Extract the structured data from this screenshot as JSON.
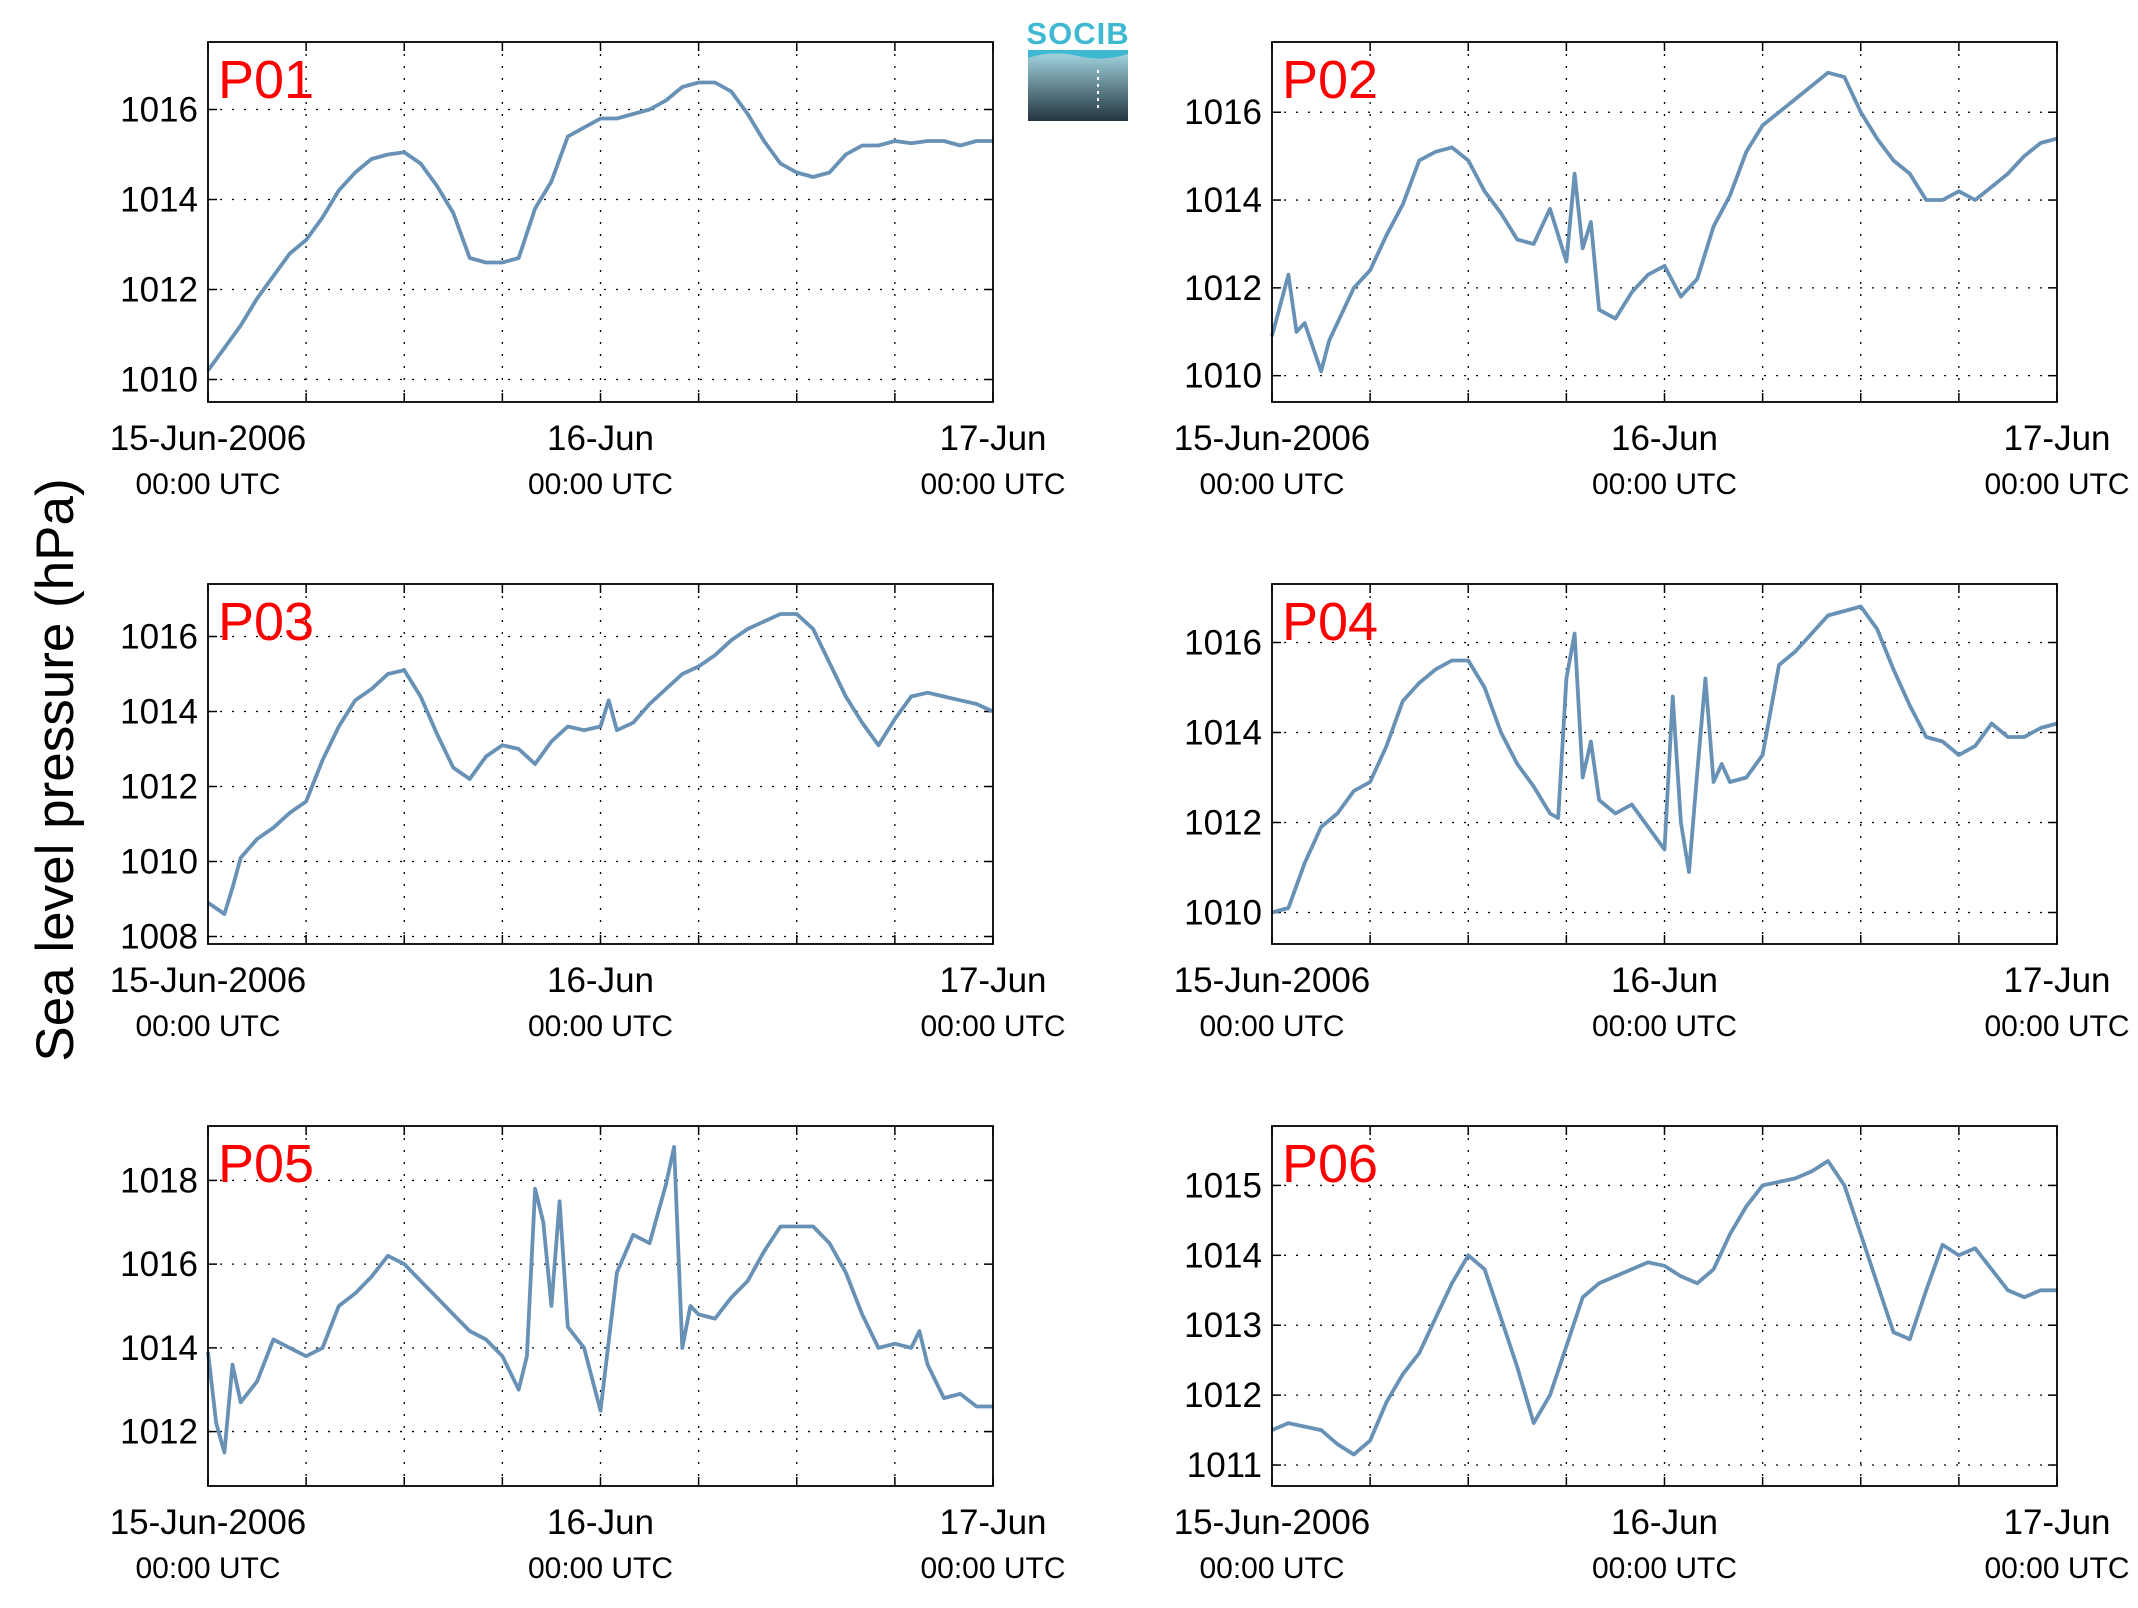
{
  "ylabel": "Sea level pressure (hPa)",
  "logo": {
    "text": "SOCIB"
  },
  "colors": {
    "line": "#6891b6",
    "label": "#ff0000",
    "logo_top": "#3fb8d2",
    "logo_bottom": "#23343f"
  },
  "time_axis": {
    "ticks": [
      {
        "main": "15-Jun-2006",
        "sub": "00:00 UTC"
      },
      {
        "main": "16-Jun",
        "sub": "00:00 UTC"
      },
      {
        "main": "17-Jun",
        "sub": "00:00 UTC"
      }
    ]
  },
  "chart_data": [
    {
      "type": "line",
      "label": "P01",
      "x_unit": "hours since 15-Jun-2006 00:00 UTC",
      "xlim": [
        0,
        48
      ],
      "ylim": [
        1009.5,
        1017.5
      ],
      "yticks": [
        1010,
        1012,
        1014,
        1016
      ],
      "grid": true,
      "x": [
        0,
        1,
        2,
        3,
        4,
        5,
        6,
        7,
        8,
        9,
        10,
        11,
        12,
        13,
        14,
        15,
        16,
        17,
        18,
        19,
        20,
        21,
        22,
        23,
        24,
        25,
        26,
        27,
        28,
        29,
        30,
        31,
        32,
        33,
        34,
        35,
        36,
        37,
        38,
        39,
        40,
        41,
        42,
        43,
        44,
        45,
        46,
        47,
        48
      ],
      "y": [
        1010.2,
        1010.7,
        1011.2,
        1011.8,
        1012.3,
        1012.8,
        1013.1,
        1013.6,
        1014.2,
        1014.6,
        1014.9,
        1015.0,
        1015.05,
        1014.8,
        1014.3,
        1013.7,
        1012.7,
        1012.6,
        1012.6,
        1012.7,
        1013.8,
        1014.4,
        1015.4,
        1015.6,
        1015.8,
        1015.8,
        1015.9,
        1016.0,
        1016.2,
        1016.5,
        1016.6,
        1016.6,
        1016.4,
        1015.9,
        1015.3,
        1014.8,
        1014.6,
        1014.5,
        1014.6,
        1015.0,
        1015.2,
        1015.2,
        1015.3,
        1015.25,
        1015.3,
        1015.3,
        1015.2,
        1015.3,
        1015.3
      ]
    },
    {
      "type": "line",
      "label": "P02",
      "x_unit": "hours since 15-Jun-2006 00:00 UTC",
      "xlim": [
        0,
        48
      ],
      "ylim": [
        1009.4,
        1017.6
      ],
      "yticks": [
        1010,
        1012,
        1014,
        1016
      ],
      "grid": true,
      "x": [
        0,
        0.5,
        1,
        1.5,
        2,
        3,
        3.5,
        4,
        5,
        6,
        7,
        8,
        9,
        10,
        11,
        12,
        13,
        14,
        15,
        16,
        17,
        18,
        18.5,
        19,
        19.5,
        20,
        21,
        22,
        23,
        24,
        25,
        26,
        27,
        28,
        29,
        30,
        31,
        32,
        33,
        34,
        35,
        36,
        37,
        38,
        39,
        40,
        41,
        42,
        43,
        44,
        45,
        46,
        47,
        48
      ],
      "y": [
        1010.9,
        1011.6,
        1012.3,
        1011.0,
        1011.2,
        1010.1,
        1010.8,
        1011.2,
        1012.0,
        1012.4,
        1013.2,
        1013.9,
        1014.9,
        1015.1,
        1015.2,
        1014.9,
        1014.2,
        1013.7,
        1013.1,
        1013.0,
        1013.8,
        1012.6,
        1014.6,
        1012.9,
        1013.5,
        1011.5,
        1011.3,
        1011.9,
        1012.3,
        1012.5,
        1011.8,
        1012.2,
        1013.4,
        1014.1,
        1015.1,
        1015.7,
        1016.0,
        1016.3,
        1016.6,
        1016.9,
        1016.8,
        1016.0,
        1015.4,
        1014.9,
        1014.6,
        1014.0,
        1014.0,
        1014.2,
        1014.0,
        1014.3,
        1014.6,
        1015.0,
        1015.3,
        1015.4
      ]
    },
    {
      "type": "line",
      "label": "P03",
      "x_unit": "hours since 15-Jun-2006 00:00 UTC",
      "xlim": [
        0,
        48
      ],
      "ylim": [
        1007.8,
        1017.4
      ],
      "yticks": [
        1008,
        1010,
        1012,
        1014,
        1016
      ],
      "grid": true,
      "x": [
        0,
        1,
        1.5,
        2,
        3,
        4,
        5,
        6,
        7,
        8,
        9,
        10,
        11,
        12,
        13,
        14,
        15,
        16,
        17,
        18,
        19,
        20,
        21,
        22,
        23,
        24,
        24.5,
        25,
        26,
        27,
        28,
        29,
        30,
        31,
        32,
        33,
        34,
        35,
        36,
        37,
        38,
        39,
        40,
        41,
        42,
        43,
        44,
        45,
        46,
        47,
        48
      ],
      "y": [
        1008.9,
        1008.6,
        1009.3,
        1010.1,
        1010.6,
        1010.9,
        1011.3,
        1011.6,
        1012.7,
        1013.6,
        1014.3,
        1014.6,
        1015.0,
        1015.1,
        1014.4,
        1013.4,
        1012.5,
        1012.2,
        1012.8,
        1013.1,
        1013.0,
        1012.6,
        1013.2,
        1013.6,
        1013.5,
        1013.6,
        1014.3,
        1013.5,
        1013.7,
        1014.2,
        1014.6,
        1015.0,
        1015.2,
        1015.5,
        1015.9,
        1016.2,
        1016.4,
        1016.6,
        1016.6,
        1016.2,
        1015.3,
        1014.4,
        1013.7,
        1013.1,
        1013.8,
        1014.4,
        1014.5,
        1014.4,
        1014.3,
        1014.2,
        1014.0
      ]
    },
    {
      "type": "line",
      "label": "P04",
      "x_unit": "hours since 15-Jun-2006 00:00 UTC",
      "xlim": [
        0,
        48
      ],
      "ylim": [
        1009.3,
        1017.3
      ],
      "yticks": [
        1010,
        1012,
        1014,
        1016
      ],
      "grid": true,
      "x": [
        0,
        1,
        2,
        3,
        4,
        5,
        6,
        7,
        8,
        9,
        10,
        11,
        12,
        13,
        14,
        15,
        16,
        17,
        17.5,
        18,
        18.5,
        19,
        19.5,
        20,
        21,
        22,
        23,
        24,
        24.5,
        25,
        25.5,
        26,
        26.5,
        27,
        27.5,
        28,
        29,
        30,
        31,
        32,
        33,
        34,
        35,
        36,
        37,
        38,
        39,
        40,
        41,
        42,
        43,
        44,
        45,
        46,
        47,
        48
      ],
      "y": [
        1010.0,
        1010.1,
        1011.1,
        1011.9,
        1012.2,
        1012.7,
        1012.9,
        1013.7,
        1014.7,
        1015.1,
        1015.4,
        1015.6,
        1015.6,
        1015.0,
        1014.0,
        1013.3,
        1012.8,
        1012.2,
        1012.1,
        1015.2,
        1016.2,
        1013.0,
        1013.8,
        1012.5,
        1012.2,
        1012.4,
        1011.9,
        1011.4,
        1014.8,
        1012.0,
        1010.9,
        1013.1,
        1015.2,
        1012.9,
        1013.3,
        1012.9,
        1013.0,
        1013.5,
        1015.5,
        1015.8,
        1016.2,
        1016.6,
        1016.7,
        1016.8,
        1016.3,
        1015.4,
        1014.6,
        1013.9,
        1013.8,
        1013.5,
        1013.7,
        1014.2,
        1013.9,
        1013.9,
        1014.1,
        1014.2
      ]
    },
    {
      "type": "line",
      "label": "P05",
      "x_unit": "hours since 15-Jun-2006 00:00 UTC",
      "xlim": [
        0,
        48
      ],
      "ylim": [
        1010.7,
        1019.3
      ],
      "yticks": [
        1012,
        1014,
        1016,
        1018
      ],
      "grid": true,
      "x": [
        0,
        0.5,
        1,
        1.5,
        2,
        3,
        4,
        5,
        6,
        7,
        8,
        9,
        10,
        11,
        12,
        13,
        14,
        15,
        16,
        17,
        18,
        19,
        19.5,
        20,
        20.5,
        21,
        21.5,
        22,
        23,
        24,
        25,
        26,
        27,
        28,
        28.5,
        29,
        29.5,
        30,
        31,
        32,
        33,
        34,
        35,
        36,
        37,
        38,
        39,
        40,
        41,
        42,
        43,
        43.5,
        44,
        45,
        46,
        47,
        48
      ],
      "y": [
        1013.9,
        1012.2,
        1011.5,
        1013.6,
        1012.7,
        1013.2,
        1014.2,
        1014.0,
        1013.8,
        1014.0,
        1015.0,
        1015.3,
        1015.7,
        1016.2,
        1016.0,
        1015.6,
        1015.2,
        1014.8,
        1014.4,
        1014.2,
        1013.8,
        1013.0,
        1013.8,
        1017.8,
        1017.0,
        1015.0,
        1017.5,
        1014.5,
        1014.0,
        1012.5,
        1015.8,
        1016.7,
        1016.5,
        1017.9,
        1018.8,
        1014.0,
        1015.0,
        1014.8,
        1014.7,
        1015.2,
        1015.6,
        1016.3,
        1016.9,
        1016.9,
        1016.9,
        1016.5,
        1015.8,
        1014.8,
        1014.0,
        1014.1,
        1014.0,
        1014.4,
        1013.6,
        1012.8,
        1012.9,
        1012.6,
        1012.6
      ]
    },
    {
      "type": "line",
      "label": "P06",
      "x_unit": "hours since 15-Jun-2006 00:00 UTC",
      "xlim": [
        0,
        48
      ],
      "ylim": [
        1010.7,
        1015.85
      ],
      "yticks": [
        1011,
        1012,
        1013,
        1014,
        1015
      ],
      "grid": true,
      "x": [
        0,
        1,
        2,
        3,
        4,
        5,
        6,
        7,
        8,
        9,
        10,
        11,
        12,
        13,
        14,
        15,
        16,
        17,
        18,
        19,
        20,
        21,
        22,
        23,
        24,
        25,
        26,
        27,
        28,
        29,
        30,
        31,
        32,
        33,
        34,
        35,
        36,
        37,
        38,
        39,
        40,
        41,
        42,
        43,
        44,
        45,
        46,
        47,
        48
      ],
      "y": [
        1011.5,
        1011.6,
        1011.55,
        1011.5,
        1011.3,
        1011.15,
        1011.35,
        1011.9,
        1012.3,
        1012.6,
        1013.1,
        1013.6,
        1014.0,
        1013.8,
        1013.1,
        1012.4,
        1011.6,
        1012.0,
        1012.7,
        1013.4,
        1013.6,
        1013.7,
        1013.8,
        1013.9,
        1013.85,
        1013.7,
        1013.6,
        1013.8,
        1014.3,
        1014.7,
        1015.0,
        1015.05,
        1015.1,
        1015.2,
        1015.35,
        1015.0,
        1014.3,
        1013.6,
        1012.9,
        1012.8,
        1013.5,
        1014.15,
        1014.0,
        1014.1,
        1013.8,
        1013.5,
        1013.4,
        1013.5,
        1013.5
      ]
    }
  ]
}
